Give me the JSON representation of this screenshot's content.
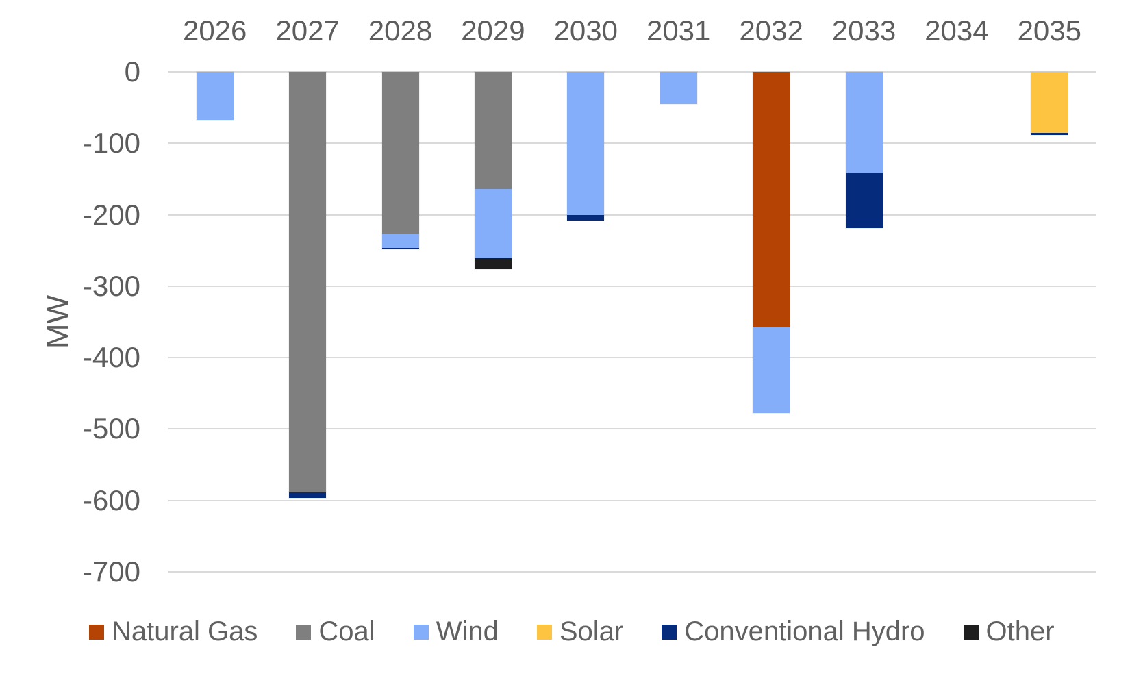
{
  "chart_data": {
    "type": "bar",
    "stacked": true,
    "orientation": "vertical",
    "title": "",
    "xlabel": "",
    "ylabel": "MW",
    "unit": "MW",
    "categories": [
      "2026",
      "2027",
      "2028",
      "2029",
      "2030",
      "2031",
      "2032",
      "2033",
      "2034",
      "2035"
    ],
    "series": [
      {
        "name": "Natural Gas",
        "color": "#B54304",
        "values": [
          0,
          0,
          0,
          0,
          0,
          0,
          -358,
          0,
          0,
          0
        ]
      },
      {
        "name": "Coal",
        "color": "#7F7F7F",
        "values": [
          0,
          -589,
          -226,
          -164,
          0,
          0,
          0,
          0,
          0,
          0
        ]
      },
      {
        "name": "Wind",
        "color": "#85AEFA",
        "values": [
          -67,
          0,
          -20,
          -97,
          -200,
          -45,
          -120,
          -141,
          0,
          0
        ]
      },
      {
        "name": "Solar",
        "color": "#FCC440",
        "values": [
          0,
          0,
          0,
          0,
          0,
          0,
          0,
          0,
          0,
          -85
        ]
      },
      {
        "name": "Conventional Hydro",
        "color": "#042B7C",
        "values": [
          0,
          -8,
          -2,
          0,
          -8,
          0,
          0,
          -78,
          0,
          -3
        ]
      },
      {
        "name": "Other",
        "color": "#1E1E1E",
        "values": [
          0,
          0,
          0,
          -15,
          0,
          0,
          0,
          0,
          0,
          0
        ]
      }
    ],
    "totals_by_year": [
      -67,
      -597,
      -248,
      -276,
      -208,
      -45,
      -478,
      -219,
      0,
      -88
    ],
    "yticks": [
      0,
      -100,
      -200,
      -300,
      -400,
      -500,
      -600,
      -700
    ],
    "ylim": [
      -700,
      0
    ],
    "grid": true,
    "gridline_color": "#dadada",
    "axis_label_color": "#5d5d5d",
    "legend_position": "bottom",
    "x_axis_position": "top"
  }
}
